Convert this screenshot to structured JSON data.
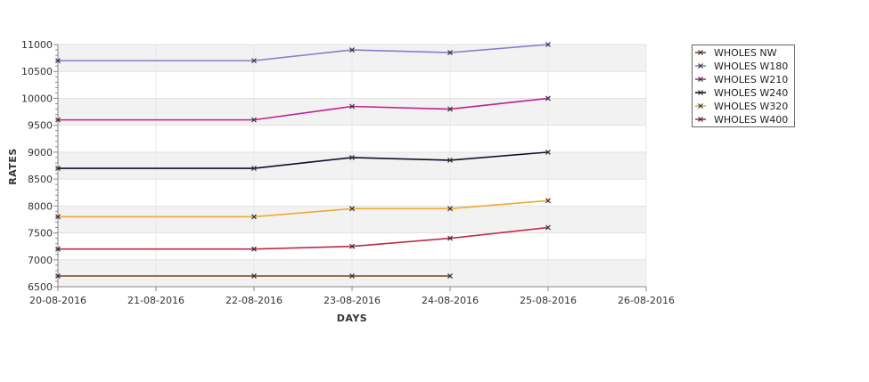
{
  "chart_data": {
    "type": "line",
    "title": "",
    "xlabel": "DAYS",
    "ylabel": "RATES",
    "x_ticks": [
      "20-08-2016",
      "21-08-2016",
      "22-08-2016",
      "23-08-2016",
      "24-08-2016",
      "25-08-2016",
      "26-08-2016"
    ],
    "y_ticks": [
      6500,
      7000,
      7500,
      8000,
      8500,
      9000,
      9500,
      10000,
      10500,
      11000
    ],
    "ylim": [
      6500,
      11000
    ],
    "xlim": [
      "20-08-2016",
      "26-08-2016"
    ],
    "grid": true,
    "legend_position": "top-right",
    "series": [
      {
        "name": "WHOLES NW",
        "color": "#8b4a2b",
        "points": [
          {
            "x": "20-08-2016",
            "y": 6700
          },
          {
            "x": "22-08-2016",
            "y": 6700
          },
          {
            "x": "23-08-2016",
            "y": 6700
          },
          {
            "x": "24-08-2016",
            "y": 6700
          }
        ]
      },
      {
        "name": "WHOLES W180",
        "color": "#8080cc",
        "points": [
          {
            "x": "20-08-2016",
            "y": 10700
          },
          {
            "x": "22-08-2016",
            "y": 10700
          },
          {
            "x": "23-08-2016",
            "y": 10900
          },
          {
            "x": "24-08-2016",
            "y": 10850
          },
          {
            "x": "25-08-2016",
            "y": 11000
          }
        ]
      },
      {
        "name": "WHOLES W210",
        "color": "#c0208f",
        "points": [
          {
            "x": "20-08-2016",
            "y": 9600
          },
          {
            "x": "22-08-2016",
            "y": 9600
          },
          {
            "x": "23-08-2016",
            "y": 9850
          },
          {
            "x": "24-08-2016",
            "y": 9800
          },
          {
            "x": "25-08-2016",
            "y": 10000
          }
        ]
      },
      {
        "name": "WHOLES W240",
        "color": "#1a0a2a",
        "points": [
          {
            "x": "20-08-2016",
            "y": 8700
          },
          {
            "x": "22-08-2016",
            "y": 8700
          },
          {
            "x": "23-08-2016",
            "y": 8900
          },
          {
            "x": "24-08-2016",
            "y": 8850
          },
          {
            "x": "25-08-2016",
            "y": 9000
          }
        ]
      },
      {
        "name": "WHOLES W320",
        "color": "#f0a830",
        "points": [
          {
            "x": "20-08-2016",
            "y": 7800
          },
          {
            "x": "22-08-2016",
            "y": 7800
          },
          {
            "x": "23-08-2016",
            "y": 7950
          },
          {
            "x": "24-08-2016",
            "y": 7950
          },
          {
            "x": "25-08-2016",
            "y": 8100
          }
        ]
      },
      {
        "name": "WHOLES W400",
        "color": "#c02848",
        "points": [
          {
            "x": "20-08-2016",
            "y": 7200
          },
          {
            "x": "22-08-2016",
            "y": 7200
          },
          {
            "x": "23-08-2016",
            "y": 7250
          },
          {
            "x": "24-08-2016",
            "y": 7400
          },
          {
            "x": "25-08-2016",
            "y": 7600
          }
        ]
      }
    ]
  }
}
